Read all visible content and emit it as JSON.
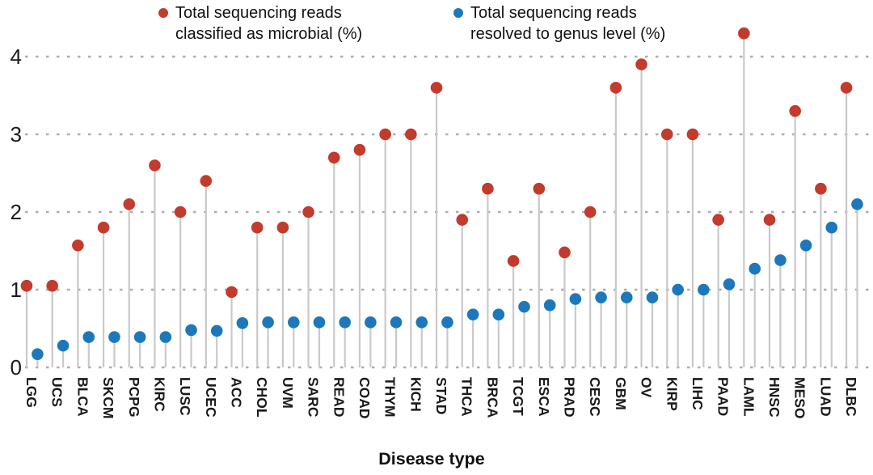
{
  "legend": {
    "items": [
      {
        "key": "microbial",
        "line1": "Total sequencing reads",
        "line2": "classified as microbial (%)",
        "color": "#c23b2c"
      },
      {
        "key": "genus",
        "line1": "Total sequencing reads",
        "line2": "resolved to genus level (%)",
        "color": "#1d78bb"
      }
    ]
  },
  "axes": {
    "x_title": "Disease type",
    "y_tick_labels": [
      "0",
      "1",
      "2",
      "3",
      "4"
    ]
  },
  "chart_data": {
    "type": "scatter",
    "variant": "lollipop-paired",
    "title": "",
    "xlabel": "Disease type",
    "ylabel": "",
    "ylim": [
      0,
      4.4
    ],
    "yticks": [
      0,
      1,
      2,
      3,
      4
    ],
    "grid": "horizontal-dotted",
    "legend_position": "top",
    "categories": [
      "LGG",
      "UCS",
      "BLCA",
      "SKCM",
      "PCPG",
      "KIRC",
      "LUSC",
      "UCEC",
      "ACC",
      "CHOL",
      "UVM",
      "SARC",
      "READ",
      "COAD",
      "THYM",
      "KICH",
      "STAD",
      "THCA",
      "BRCA",
      "TCGT",
      "ESCA",
      "PRAD",
      "CESC",
      "GBM",
      "OV",
      "KIRP",
      "LIHC",
      "PAAD",
      "LAML",
      "HNSC",
      "MESO",
      "LUAD",
      "DLBC"
    ],
    "series": [
      {
        "name": "Total sequencing reads classified as microbial (%)",
        "color": "#c23b2c",
        "values": [
          1.05,
          1.05,
          1.57,
          1.8,
          2.1,
          2.6,
          2.0,
          2.4,
          0.97,
          1.8,
          1.8,
          2.0,
          2.7,
          2.8,
          3.0,
          3.0,
          3.6,
          1.9,
          2.3,
          1.37,
          2.3,
          1.48,
          2.0,
          3.6,
          3.9,
          3.0,
          3.0,
          1.9,
          4.3,
          1.9,
          3.3,
          2.3,
          3.6
        ]
      },
      {
        "name": "Total sequencing reads resolved to genus level (%)",
        "color": "#1d78bb",
        "values": [
          0.17,
          0.28,
          0.39,
          0.39,
          0.39,
          0.39,
          0.48,
          0.47,
          0.57,
          0.58,
          0.58,
          0.58,
          0.58,
          0.58,
          0.58,
          0.58,
          0.58,
          0.68,
          0.68,
          0.78,
          0.8,
          0.88,
          0.9,
          0.9,
          0.9,
          1.0,
          1.0,
          1.07,
          1.27,
          1.38,
          1.57,
          1.8,
          2.1
        ]
      }
    ],
    "style": {
      "stem_color": "#c9c9c9",
      "gridline_color": "#aeaeae",
      "text_color": "#1a1a1a"
    }
  }
}
